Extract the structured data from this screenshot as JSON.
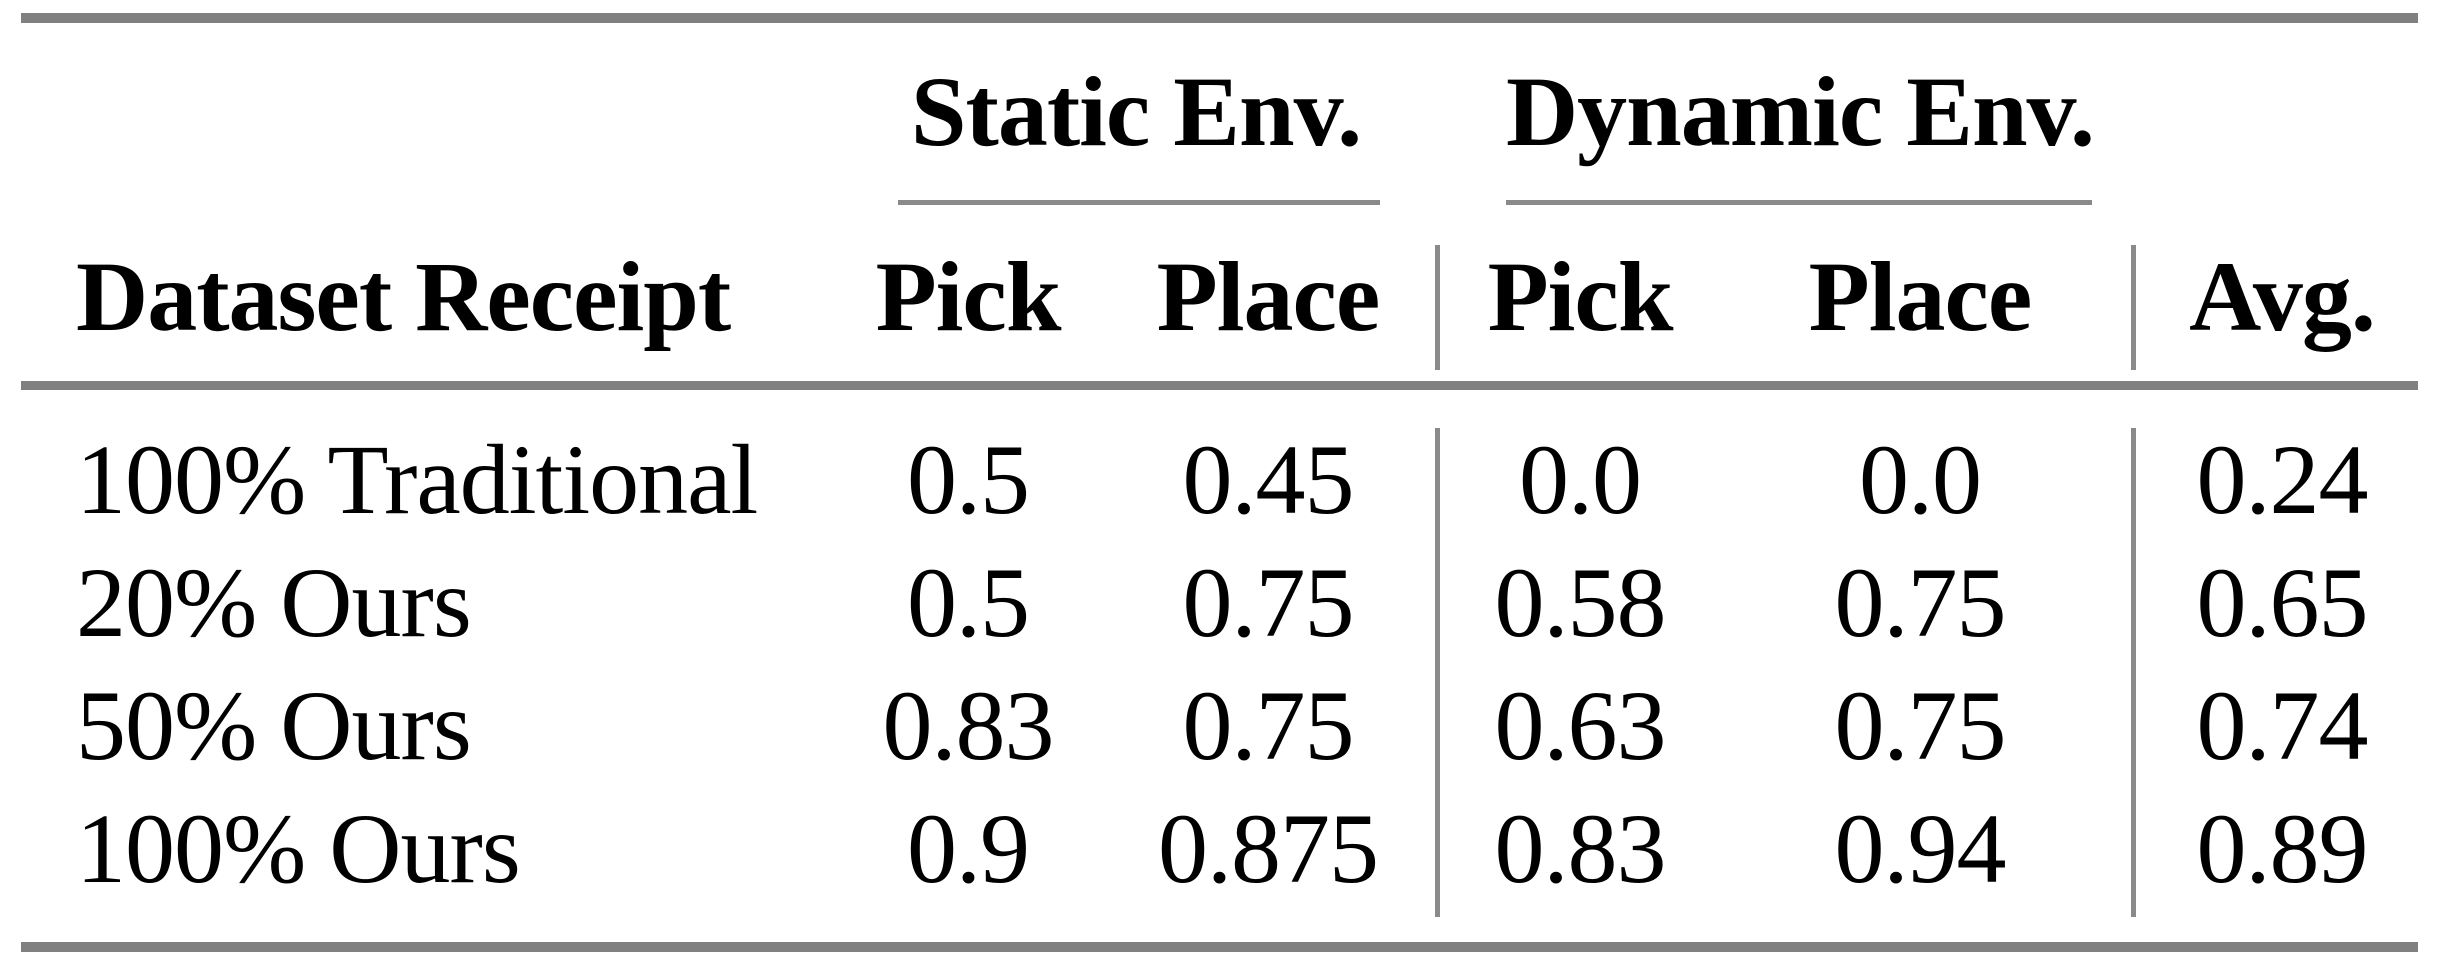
{
  "table": {
    "group_headers": {
      "static": "Static Env.",
      "dynamic": "Dynamic Env."
    },
    "columns": {
      "label": "Dataset Receipt",
      "static_pick": "Pick",
      "static_place": "Place",
      "dynamic_pick": "Pick",
      "dynamic_place": "Place",
      "avg": "Avg."
    },
    "rows": [
      {
        "label": "100% Traditional",
        "static_pick": "0.5",
        "static_place": "0.45",
        "dynamic_pick": "0.0",
        "dynamic_place": "0.0",
        "avg": "0.24"
      },
      {
        "label": "20% Ours",
        "static_pick": "0.5",
        "static_place": "0.75",
        "dynamic_pick": "0.58",
        "dynamic_place": "0.75",
        "avg": "0.65"
      },
      {
        "label": "50% Ours",
        "static_pick": "0.83",
        "static_place": "0.75",
        "dynamic_pick": "0.63",
        "dynamic_place": "0.75",
        "avg": "0.74"
      },
      {
        "label": "100% Ours",
        "static_pick": "0.9",
        "static_place": "0.875",
        "dynamic_pick": "0.83",
        "dynamic_place": "0.94",
        "avg": "0.89"
      }
    ],
    "colors": {
      "rule_gray": "#808080",
      "text": "#000000",
      "background": "#ffffff"
    }
  },
  "chart_data": {
    "type": "table",
    "title": "",
    "column_groups": [
      "Static Env.",
      "Dynamic Env."
    ],
    "columns": [
      "Dataset Receipt",
      "Static Env. Pick",
      "Static Env. Place",
      "Dynamic Env. Pick",
      "Dynamic Env. Place",
      "Avg."
    ],
    "rows": [
      [
        "100% Traditional",
        0.5,
        0.45,
        0.0,
        0.0,
        0.24
      ],
      [
        "20% Ours",
        0.5,
        0.75,
        0.58,
        0.75,
        0.65
      ],
      [
        "50% Ours",
        0.83,
        0.75,
        0.63,
        0.75,
        0.74
      ],
      [
        "100% Ours",
        0.9,
        0.875,
        0.83,
        0.94,
        0.89
      ]
    ]
  }
}
